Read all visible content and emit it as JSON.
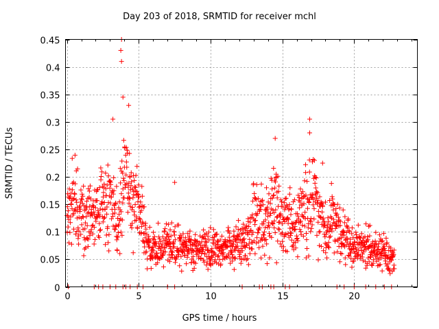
{
  "chart_data": {
    "type": "scatter",
    "title": "Day 203 of 2018, SRMTID for receiver mchl",
    "xlabel": "GPS time / hours",
    "ylabel": "SRMTID / TECUs",
    "xlim": [
      -0.1,
      24.4
    ],
    "ylim": [
      0,
      0.45
    ],
    "x_ticks": [
      0,
      5,
      10,
      15,
      20
    ],
    "x_tick_labels": [
      "0",
      "5",
      "10",
      "15",
      "20"
    ],
    "y_ticks": [
      0,
      0.05,
      0.1,
      0.15,
      0.2,
      0.25,
      0.3,
      0.35,
      0.4,
      0.45
    ],
    "y_tick_labels": [
      "0",
      "0.05",
      "0.1",
      "0.15",
      "0.2",
      "0.25",
      "0.3",
      "0.35",
      "0.4",
      "0.45"
    ],
    "grid": true,
    "marker": "+",
    "color": "#ff0000",
    "x_range_covered": [
      0,
      22.8
    ],
    "mean_profile": {
      "x": [
        0,
        0.5,
        1,
        1.5,
        2,
        2.5,
        3,
        3.5,
        4,
        4.5,
        5,
        5.5,
        6,
        7,
        8,
        9,
        10,
        11,
        12,
        12.5,
        13,
        14,
        14.5,
        15,
        16,
        17,
        17.5,
        18,
        18.5,
        19,
        20,
        21,
        22,
        22.8
      ],
      "y": [
        0.13,
        0.16,
        0.12,
        0.12,
        0.13,
        0.15,
        0.18,
        0.1,
        0.21,
        0.16,
        0.16,
        0.08,
        0.07,
        0.08,
        0.07,
        0.07,
        0.07,
        0.07,
        0.08,
        0.08,
        0.13,
        0.12,
        0.15,
        0.11,
        0.12,
        0.16,
        0.14,
        0.1,
        0.12,
        0.1,
        0.07,
        0.07,
        0.06,
        0.05
      ]
    },
    "notable_peaks": [
      {
        "x": 3.8,
        "y": 0.45
      },
      {
        "x": 3.75,
        "y": 0.43
      },
      {
        "x": 3.8,
        "y": 0.41
      },
      {
        "x": 3.9,
        "y": 0.345
      },
      {
        "x": 4.3,
        "y": 0.33
      },
      {
        "x": 3.2,
        "y": 0.305
      },
      {
        "x": 16.9,
        "y": 0.305
      },
      {
        "x": 16.9,
        "y": 0.28
      },
      {
        "x": 14.5,
        "y": 0.27
      },
      {
        "x": 7.5,
        "y": 0.19
      },
      {
        "x": 17.8,
        "y": 0.225
      }
    ],
    "baseline_x": [
      0.1,
      1.9,
      2.2,
      2.5,
      3.0,
      3.4,
      3.9,
      4.1,
      4.4,
      4.9,
      5.3,
      7.0,
      7.5,
      12.2,
      13.4,
      13.6,
      14.2,
      14.4,
      15.2,
      15.5,
      18.8,
      19.3,
      20.0,
      20.8,
      21.5,
      22.1,
      22.6
    ]
  }
}
